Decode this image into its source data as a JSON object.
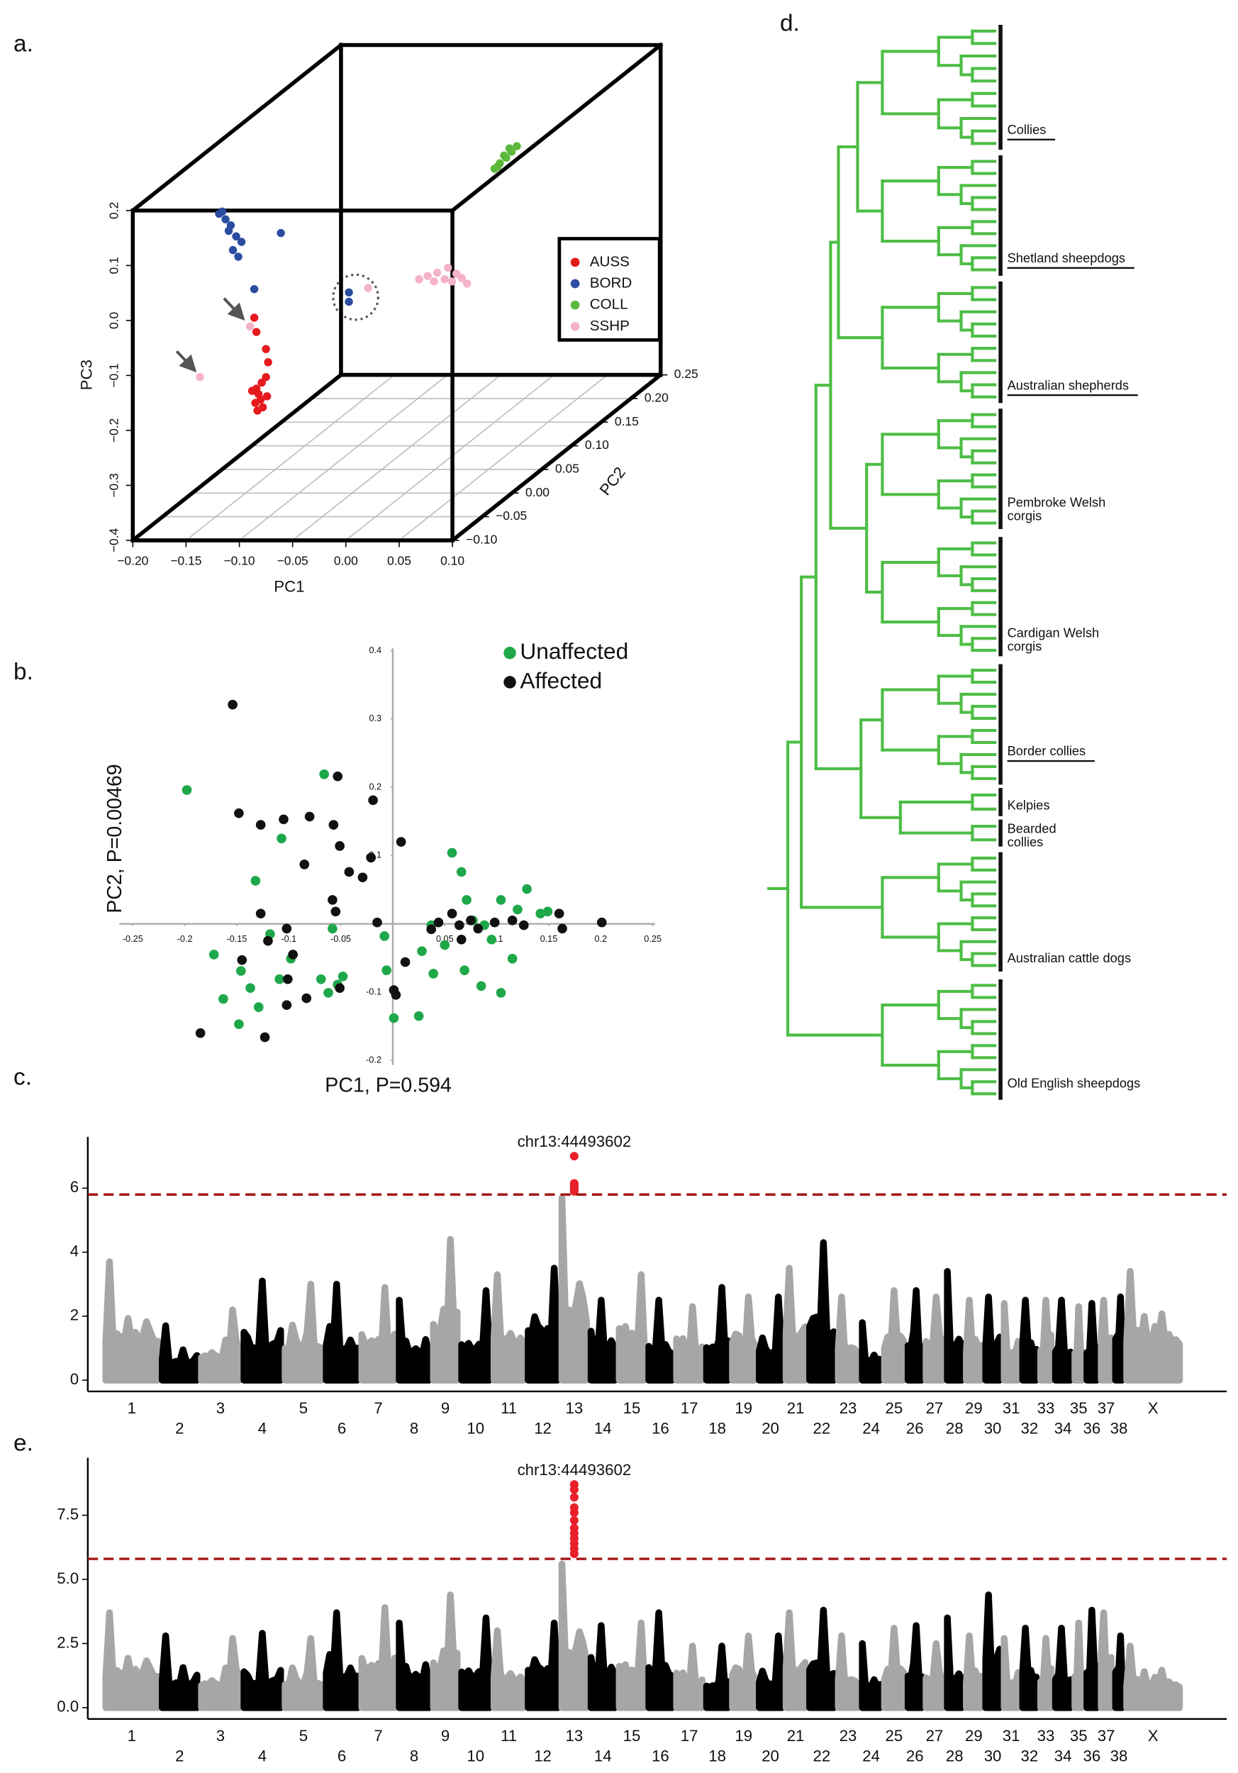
{
  "chart_data": [
    {
      "type": "scatter3d",
      "label": "a.",
      "xlabel": "PC1",
      "ylabel": "PC2",
      "zlabel": "PC3",
      "xlim": [
        -0.2,
        0.1
      ],
      "ylim": [
        -0.1,
        0.25
      ],
      "zlim": [
        -0.4,
        0.2
      ],
      "grid": true,
      "xticks": [
        {
          "value": -0.2,
          "label": "−0.20"
        },
        {
          "value": -0.15,
          "label": "−0.15"
        },
        {
          "value": -0.1,
          "label": "−0.10"
        },
        {
          "value": -0.05,
          "label": "−0.05"
        },
        {
          "value": 0,
          "label": "0.00"
        },
        0.05,
        {
          "value": 0.1,
          "label": "0.10"
        }
      ],
      "yticks": [
        {
          "value": -0.1,
          "label": "−0.10"
        },
        {
          "value": -0.05,
          "label": "−0.05"
        },
        {
          "value": 0,
          "label": "0.00"
        },
        0.05,
        {
          "value": 0.1,
          "label": "0.10"
        },
        0.15,
        {
          "value": 0.2,
          "label": "0.20"
        },
        0.25
      ],
      "zticks": [
        0.2,
        0.1,
        {
          "value": 0,
          "label": "0.0"
        },
        {
          "value": -0.1,
          "label": "−0.1"
        },
        {
          "value": -0.2,
          "label": "−0.2"
        },
        {
          "value": -0.3,
          "label": "−0.3"
        },
        {
          "value": -0.4,
          "label": "−0.4"
        }
      ],
      "series": [
        {
          "name": "AUSS",
          "color": "#e41a1c",
          "x": [
            -0.086,
            -0.084,
            -0.075,
            -0.073,
            -0.075,
            -0.079,
            -0.084,
            -0.082,
            -0.08,
            -0.085,
            -0.078,
            -0.083,
            -0.074,
            -0.088
          ],
          "y": [
            -0.1,
            -0.1,
            -0.1,
            -0.1,
            -0.1,
            -0.1,
            -0.1,
            -0.1,
            -0.1,
            -0.1,
            -0.1,
            -0.1,
            -0.1,
            -0.1
          ],
          "z": [
            0.005,
            -0.021,
            -0.052,
            -0.076,
            -0.103,
            -0.113,
            -0.124,
            -0.134,
            -0.144,
            -0.15,
            -0.158,
            -0.164,
            -0.138,
            -0.128
          ]
        },
        {
          "name": "BORD",
          "color": "#2b4da0",
          "x": [
            -0.119,
            -0.113,
            -0.108,
            -0.116,
            -0.103,
            -0.106,
            -0.101,
            -0.098,
            -0.11,
            -0.061,
            -0.086,
            -0.053,
            -0.053
          ],
          "y": [
            -0.1,
            -0.1,
            -0.1,
            -0.1,
            -0.1,
            -0.1,
            -0.1,
            -0.1,
            -0.1,
            -0.1,
            -0.1,
            0,
            0
          ],
          "z": [
            0.194,
            0.184,
            0.173,
            0.198,
            0.153,
            0.128,
            0.116,
            0.143,
            0.163,
            0.159,
            0.057,
            -0.035,
            -0.052
          ]
        },
        {
          "name": "COLL",
          "color": "#5cb83c",
          "x": [
            -0.028,
            -0.023,
            -0.017,
            -0.012,
            -0.007,
            -0.019,
            -0.014,
            -0.025
          ],
          "y": [
            0.2,
            0.2,
            0.2,
            0.2,
            0.2,
            0.2,
            0.2,
            0.2
          ],
          "z": [
            0.018,
            0.028,
            0.038,
            0.049,
            0.059,
            0.042,
            0.055,
            0.022
          ]
        },
        {
          "name": "SSHP",
          "color": "#f5b3c7",
          "x": [
            -0.007,
            0.002,
            0.009,
            0.016,
            0.025,
            -0.015,
            0.012,
            0.02,
            -0.001,
            0.03,
            -0.09,
            -0.137,
            -0.035
          ],
          "y": [
            0.05,
            0.05,
            0.05,
            0.05,
            0.05,
            0.05,
            0.05,
            0.05,
            0.05,
            0.05,
            -0.1,
            -0.1,
            0
          ],
          "z": [
            -0.048,
            -0.042,
            -0.054,
            -0.058,
            -0.052,
            -0.054,
            -0.033,
            -0.044,
            -0.058,
            -0.062,
            -0.011,
            -0.103,
            -0.027
          ]
        }
      ]
    },
    {
      "type": "scatter",
      "label": "b.",
      "xlabel": "PC1,  P=0.594",
      "ylabel": "PC2, P=0.00469",
      "xlim": [
        -0.25,
        0.25
      ],
      "ylim": [
        -0.2,
        0.4
      ],
      "xticks": [
        -0.25,
        -0.2,
        -0.15,
        -0.1,
        -0.05,
        0.05,
        0.1,
        0.15,
        0.2,
        0.25
      ],
      "yticks": [
        0.4,
        0.3,
        0.2,
        0.1,
        0,
        -0.1,
        -0.2
      ],
      "series": [
        {
          "name": "Unaffected",
          "color": "#1ea84a",
          "x": [
            -0.198,
            -0.066,
            -0.107,
            -0.132,
            -0.172,
            -0.146,
            -0.163,
            -0.148,
            -0.137,
            -0.109,
            -0.098,
            -0.069,
            -0.062,
            -0.053,
            -0.048,
            -0.129,
            -0.118,
            -0.058,
            -0.008,
            -0.006,
            0.001,
            0.025,
            0.037,
            0.05,
            0.057,
            0.066,
            0.071,
            0.077,
            0.088,
            0.095,
            0.104,
            0.115,
            0.12,
            0.129,
            0.142,
            0.149,
            0.085,
            0.104,
            0.069,
            0.039,
            0.028
          ],
          "y": [
            0.196,
            0.219,
            0.125,
            0.063,
            -0.045,
            -0.069,
            -0.11,
            -0.147,
            -0.094,
            -0.081,
            -0.051,
            -0.081,
            -0.101,
            -0.089,
            -0.077,
            -0.122,
            -0.015,
            -0.007,
            -0.018,
            -0.068,
            -0.138,
            -0.135,
            -0.002,
            -0.031,
            0.104,
            0.076,
            0.035,
            0.005,
            -0.002,
            -0.023,
            0.035,
            -0.051,
            0.021,
            0.051,
            0.015,
            0.018,
            -0.091,
            -0.101,
            -0.068,
            -0.073,
            -0.04
          ]
        },
        {
          "name": "Affected",
          "color": "#111111",
          "x": [
            -0.154,
            -0.148,
            -0.127,
            -0.105,
            -0.08,
            -0.057,
            -0.051,
            -0.085,
            -0.058,
            -0.055,
            -0.042,
            -0.053,
            -0.019,
            -0.021,
            0.008,
            -0.029,
            -0.127,
            -0.12,
            -0.102,
            -0.145,
            -0.096,
            -0.123,
            -0.185,
            -0.102,
            -0.083,
            -0.051,
            0.001,
            0.003,
            -0.015,
            0.044,
            0.057,
            0.064,
            0.066,
            0.075,
            0.082,
            0.098,
            0.115,
            0.126,
            0.16,
            0.163,
            0.201,
            0.012,
            0.037,
            -0.101
          ],
          "y": [
            0.321,
            0.162,
            0.145,
            0.153,
            0.157,
            0.145,
            0.114,
            0.087,
            0.035,
            0.018,
            0.076,
            0.216,
            0.181,
            0.097,
            0.12,
            0.068,
            0.015,
            -0.025,
            -0.007,
            -0.053,
            -0.045,
            -0.166,
            -0.16,
            -0.119,
            -0.109,
            -0.094,
            -0.097,
            -0.104,
            0.002,
            0.002,
            0.015,
            -0.002,
            -0.023,
            0.005,
            -0.007,
            0.002,
            0.005,
            -0.002,
            0.015,
            -0.007,
            0.002,
            -0.056,
            -0.008,
            -0.081
          ]
        }
      ]
    },
    {
      "type": "manhattan",
      "label": "c.",
      "annotation": "chr13:44493602",
      "categories": [
        "1",
        "2",
        "3",
        "4",
        "5",
        "6",
        "7",
        "8",
        "9",
        "10",
        "11",
        "12",
        "13",
        "14",
        "15",
        "16",
        "17",
        "18",
        "19",
        "20",
        "21",
        "22",
        "23",
        "24",
        "25",
        "26",
        "27",
        "28",
        "29",
        "30",
        "31",
        "32",
        "33",
        "34",
        "35",
        "36",
        "37",
        "38",
        "X"
      ],
      "values": [
        3.7,
        1.7,
        2.2,
        3.1,
        3.0,
        3.0,
        2.9,
        2.5,
        4.4,
        2.8,
        3.3,
        3.5,
        5.7,
        2.5,
        3.3,
        2.5,
        2.3,
        2.9,
        2.6,
        2.6,
        3.5,
        4.3,
        2.6,
        1.8,
        2.8,
        2.8,
        2.6,
        3.4,
        2.5,
        2.6,
        2.4,
        2.5,
        2.5,
        2.5,
        2.3,
        2.4,
        2.5,
        2.6,
        3.4
      ],
      "colors": [
        "#a6a6a6",
        "#000000"
      ],
      "highlight": {
        "category": "13",
        "color": "#e8202a",
        "values": [
          7.0,
          6.15,
          6.1,
          6.05,
          6.0,
          5.95,
          5.9
        ]
      },
      "threshold": 5.8,
      "threshold_color": "#a31515",
      "ylim": [
        -0.35,
        7.6
      ],
      "yticks": [
        0,
        2,
        4,
        6
      ]
    },
    {
      "type": "manhattan",
      "label": "e.",
      "annotation": "chr13:44493602",
      "categories": [
        "1",
        "2",
        "3",
        "4",
        "5",
        "6",
        "7",
        "8",
        "9",
        "10",
        "11",
        "12",
        "13",
        "14",
        "15",
        "16",
        "17",
        "18",
        "19",
        "20",
        "21",
        "22",
        "23",
        "24",
        "25",
        "26",
        "27",
        "28",
        "29",
        "30",
        "31",
        "32",
        "33",
        "34",
        "35",
        "36",
        "37",
        "38",
        "X"
      ],
      "values": [
        3.7,
        2.8,
        2.7,
        2.9,
        2.7,
        3.7,
        3.9,
        3.3,
        4.4,
        3.5,
        3.0,
        3.3,
        5.6,
        3.2,
        3.3,
        3.7,
        2.4,
        2.4,
        2.8,
        2.8,
        3.7,
        3.8,
        2.8,
        2.5,
        3.1,
        3.2,
        2.5,
        3.5,
        2.8,
        4.4,
        2.7,
        3.1,
        2.7,
        3.1,
        3.3,
        3.8,
        3.7,
        2.8,
        2.4
      ],
      "colors": [
        "#a6a6a6",
        "#000000"
      ],
      "highlight": {
        "category": "13",
        "color": "#e8202a",
        "values": [
          8.7,
          8.5,
          8.2,
          7.8,
          7.6,
          7.3,
          7.0,
          6.8,
          6.6,
          6.4,
          6.2,
          6.0
        ]
      },
      "threshold": 5.8,
      "threshold_color": "#a31515",
      "ylim": [
        -0.44,
        9.74
      ],
      "yticks": [
        {
          "value": 0,
          "label": "0.0"
        },
        {
          "value": 2.5,
          "label": "2.5"
        },
        {
          "value": 5,
          "label": "5.0"
        },
        {
          "value": 7.5,
          "label": "7.5"
        }
      ]
    }
  ],
  "tree": {
    "label": "d.",
    "color": "#4dbd45",
    "groups": [
      [
        "Collies"
      ],
      [
        "Shetland sheepdogs"
      ],
      [
        "Australian shepherds"
      ],
      [
        "Pembroke Welsh",
        "corgis"
      ],
      [
        "Cardigan Welsh",
        "corgis"
      ],
      [
        "Border collies"
      ],
      [
        "Kelpies"
      ],
      [
        "Bearded",
        "collies"
      ],
      [
        "Australian cattle dogs"
      ],
      [
        "Old English sheepdogs"
      ]
    ],
    "underlined": [
      true,
      true,
      true,
      false,
      false,
      true,
      false,
      false,
      false,
      false
    ]
  }
}
